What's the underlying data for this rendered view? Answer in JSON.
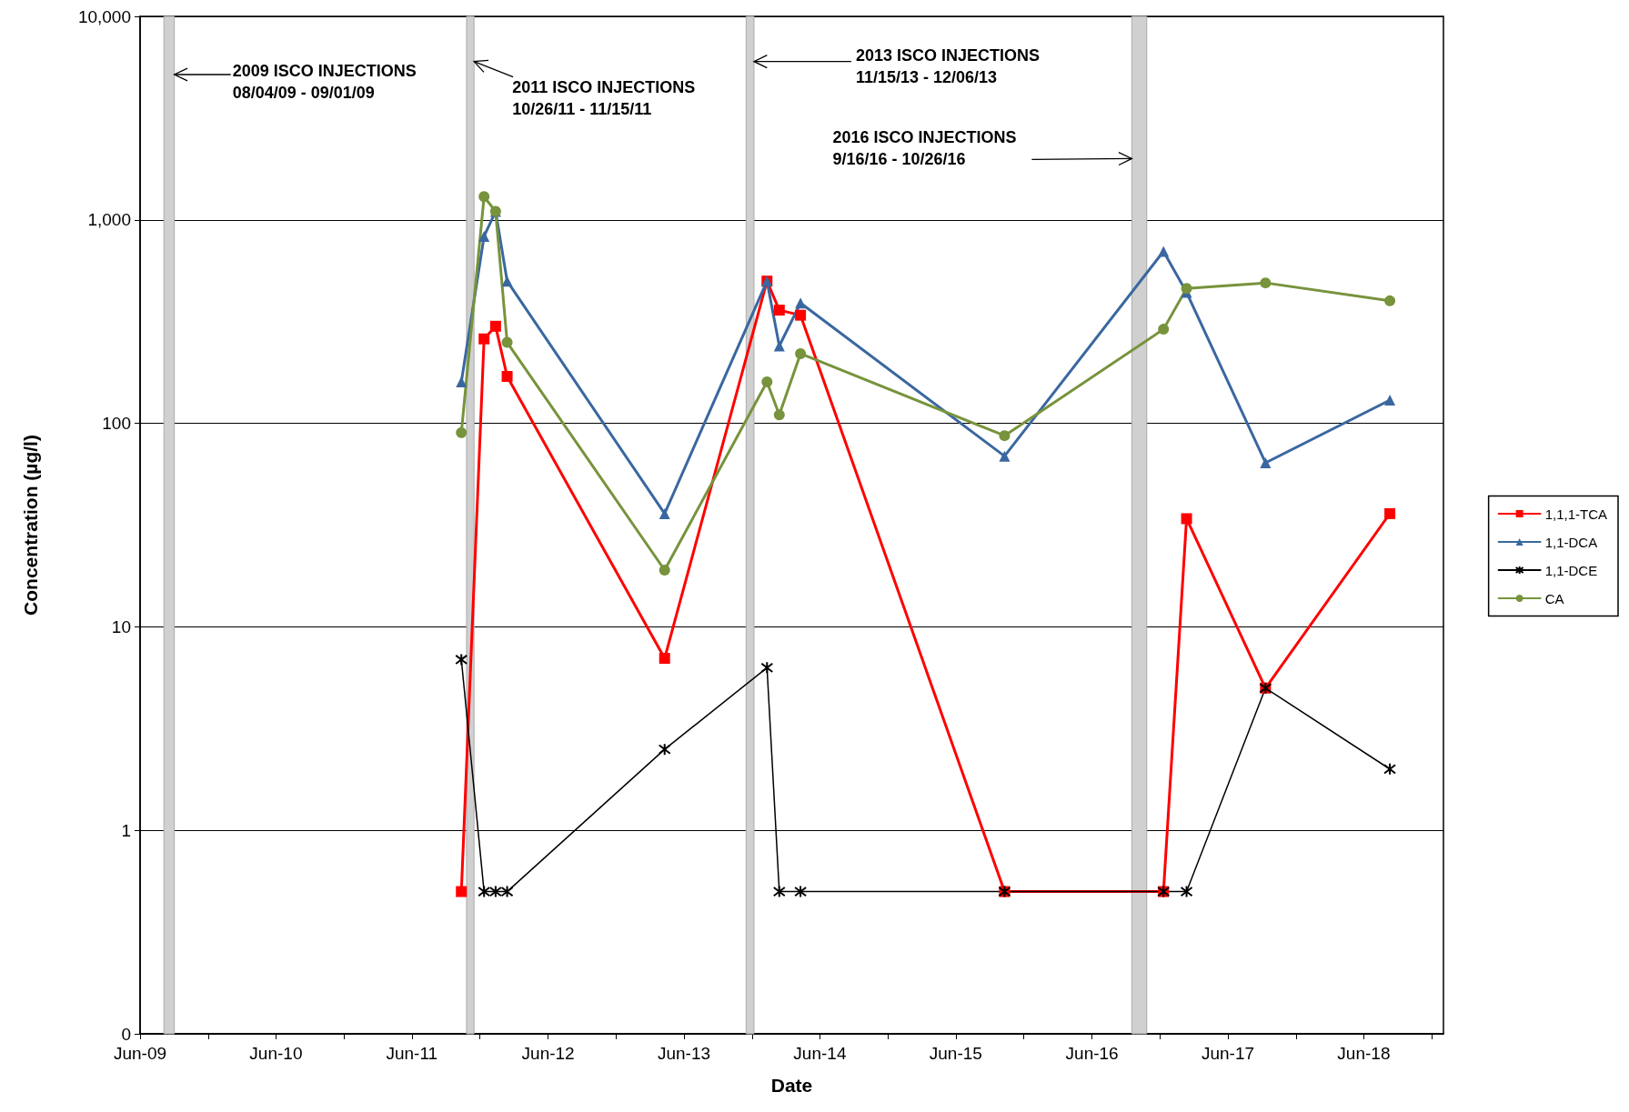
{
  "chart_data": {
    "type": "line",
    "xlabel": "Date",
    "ylabel": "Concentration (µg/l)",
    "log": "y",
    "grid": "y",
    "legend": "right",
    "line_style": "solid",
    "xlim": [
      "2009-06",
      "2019-01"
    ],
    "xticks": [
      {
        "value": "2009-06",
        "label": "Jun-09"
      },
      {
        "value": "2009-12",
        "label": null
      },
      {
        "value": "2010-06",
        "label": "Jun-10"
      },
      {
        "value": "2010-12",
        "label": null
      },
      {
        "value": "2011-06",
        "label": "Jun-11"
      },
      {
        "value": "2011-12",
        "label": null
      },
      {
        "value": "2012-06",
        "label": "Jun-12"
      },
      {
        "value": "2012-12",
        "label": null
      },
      {
        "value": "2013-06",
        "label": "Jun-13"
      },
      {
        "value": "2013-12",
        "label": null
      },
      {
        "value": "2014-06",
        "label": "Jun-14"
      },
      {
        "value": "2014-12",
        "label": null
      },
      {
        "value": "2015-06",
        "label": "Jun-15"
      },
      {
        "value": "2015-12",
        "label": null
      },
      {
        "value": "2016-06",
        "label": "Jun-16"
      },
      {
        "value": "2016-12",
        "label": null
      },
      {
        "value": "2017-06",
        "label": "Jun-17"
      },
      {
        "value": "2017-12",
        "label": null
      },
      {
        "value": "2018-06",
        "label": "Jun-18"
      },
      {
        "value": "2018-12",
        "label": null
      }
    ],
    "ylim": [
      0.1,
      10000
    ],
    "yticks": [
      {
        "value": 0.1,
        "label": "0"
      },
      1,
      10,
      100,
      {
        "value": 1000,
        "label": "1,000"
      },
      {
        "value": 10000,
        "label": "10,000"
      }
    ],
    "x": [
      "2011-10-12",
      "2011-12-12",
      "2012-01-12",
      "2012-02-12",
      "2013-04-10",
      "2014-01-10",
      "2014-02-12",
      "2014-04-10",
      "2015-10-10",
      "2016-12-10",
      "2017-02-10",
      "2017-09-10",
      "2018-08-10"
    ],
    "series": [
      {
        "name": "1,1,1-TCA",
        "color": "#ff0000",
        "marker": "square",
        "values": [
          0.5,
          260,
          300,
          170,
          7,
          500,
          360,
          340,
          0.5,
          0.5,
          34,
          5,
          36
        ]
      },
      {
        "name": "1,1-DCA",
        "color": "#3a67a0",
        "marker": "triangle",
        "values": [
          160,
          830,
          1100,
          500,
          36,
          500,
          240,
          390,
          69,
          700,
          440,
          64,
          130
        ]
      },
      {
        "name": "1,1-DCE",
        "color": "#000000",
        "marker": "cross",
        "values": [
          6.9,
          0.5,
          0.5,
          0.5,
          2.5,
          6.3,
          0.5,
          0.5,
          0.5,
          0.5,
          0.5,
          5,
          2
        ]
      },
      {
        "name": "CA",
        "color": "#77933c",
        "marker": "circle",
        "values": [
          90,
          1300,
          1100,
          250,
          19,
          160,
          110,
          220,
          87,
          290,
          460,
          490,
          400
        ]
      }
    ],
    "bands": [
      {
        "axis": "x",
        "from": "2009-08-04",
        "to": "2009-09-01",
        "color": "#d0d0d0"
      },
      {
        "axis": "x",
        "from": "2011-10-26",
        "to": "2011-11-15",
        "color": "#d0d0d0"
      },
      {
        "axis": "x",
        "from": "2013-11-15",
        "to": "2013-12-06",
        "color": "#d0d0d0"
      },
      {
        "axis": "x",
        "from": "2016-09-16",
        "to": "2016-10-26",
        "color": "#d0d0d0"
      }
    ],
    "annotations": [
      "2009 ISCO INJECTIONS\n08/04/09 - 09/01/09",
      {
        "text": "2011 ISCO INJECTIONS\n10/26/11 - 11/15/11",
        "x": "2011-11-15",
        "y": 6000
      },
      {
        "text": "2013 ISCO INJECTIONS\n11/15/13 - 12/06/13",
        "x": "2013-12-06",
        "y": 6000
      },
      {
        "text": "2016 ISCO INJECTIONS\n9/16/16 - 10/26/16",
        "x": "2016-09-16",
        "y": 2000
      }
    ]
  }
}
